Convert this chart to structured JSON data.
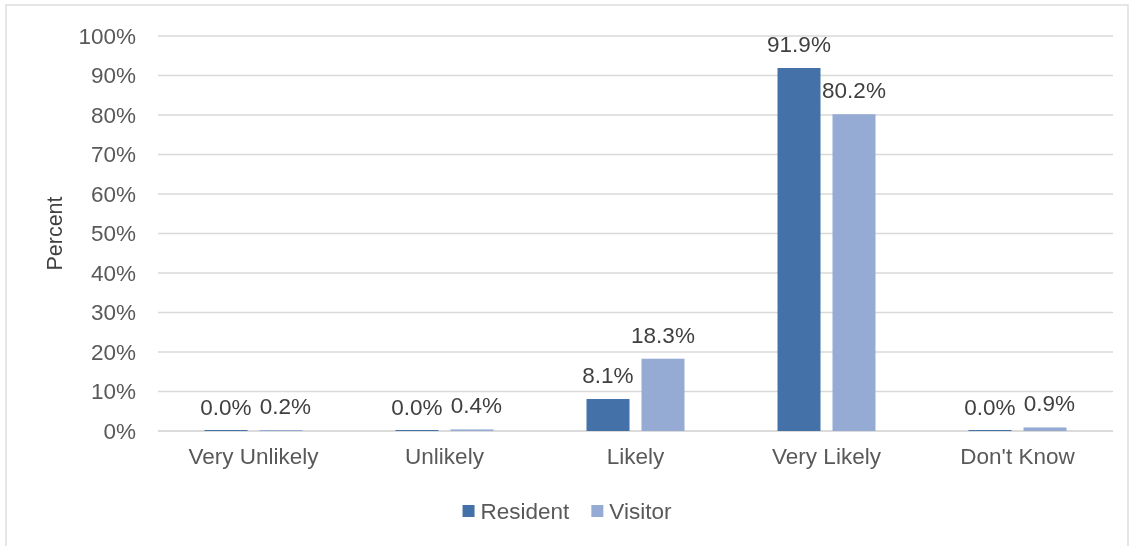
{
  "chart_data": {
    "type": "bar",
    "ylabel": "Percent",
    "categories": [
      "Very Unlikely",
      "Unlikely",
      "Likely",
      "Very Likely",
      "Don't Know"
    ],
    "series": [
      {
        "name": "Resident",
        "color": "#4472a8",
        "values": [
          0.0,
          0.0,
          8.1,
          91.9,
          0.0
        ],
        "value_labels": [
          "0.0%",
          "0.0%",
          "8.1%",
          "91.9%",
          "0.0%"
        ]
      },
      {
        "name": "Visitor",
        "color": "#95abd3",
        "values": [
          0.2,
          0.4,
          18.3,
          80.2,
          0.9
        ],
        "value_labels": [
          "0.2%",
          "0.4%",
          "18.3%",
          "80.2%",
          "0.9%"
        ]
      }
    ],
    "ylim": [
      0,
      100
    ],
    "yticks": [
      {
        "value": 0,
        "label": "0%"
      },
      {
        "value": 10,
        "label": "10%"
      },
      {
        "value": 20,
        "label": "20%"
      },
      {
        "value": 30,
        "label": "30%"
      },
      {
        "value": 40,
        "label": "40%"
      },
      {
        "value": 50,
        "label": "50%"
      },
      {
        "value": 60,
        "label": "60%"
      },
      {
        "value": 70,
        "label": "70%"
      },
      {
        "value": 80,
        "label": "80%"
      },
      {
        "value": 90,
        "label": "90%"
      },
      {
        "value": 100,
        "label": "100%"
      }
    ],
    "grid": "y",
    "legend": "bottom"
  }
}
